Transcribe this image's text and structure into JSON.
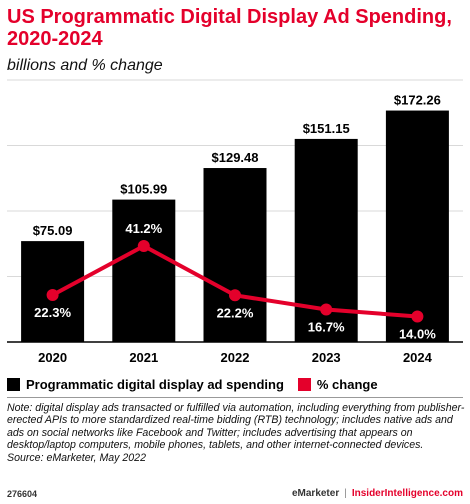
{
  "header": {
    "title": "US Programmatic Digital Display Ad Spending, 2020-2024",
    "subtitle": "billions and % change"
  },
  "chart_data": {
    "type": "bar",
    "categories": [
      "2020",
      "2021",
      "2022",
      "2023",
      "2024"
    ],
    "series": [
      {
        "name": "Programmatic digital display ad spending",
        "type": "bar",
        "values": [
          75.09,
          105.99,
          129.48,
          151.15,
          172.26
        ],
        "labels": [
          "$75.09",
          "$105.99",
          "$129.48",
          "$151.15",
          "$172.26"
        ],
        "color": "#000000"
      },
      {
        "name": "% change",
        "type": "line",
        "values": [
          22.3,
          41.2,
          22.2,
          16.7,
          14.0
        ],
        "labels": [
          "22.3%",
          "41.2%",
          "22.2%",
          "16.7%",
          "14.0%"
        ],
        "color": "#e4002b"
      }
    ],
    "legend": "bottom"
  },
  "note": "Note: digital display ads transacted or fulfilled via automation, including everything from publisher-erected APIs to more standardized real-time bidding (RTB) technology; includes native ads and ads on social networks like Facebook and Twitter; includes advertising that appears on desktop/laptop computers, mobile phones, tablets, and other internet-connected devices.",
  "source": "Source: eMarketer, May 2022",
  "footer": {
    "chart_id": "276604",
    "brand": "eMarketer",
    "separator": "|",
    "site": "InsiderIntelligence.com"
  }
}
